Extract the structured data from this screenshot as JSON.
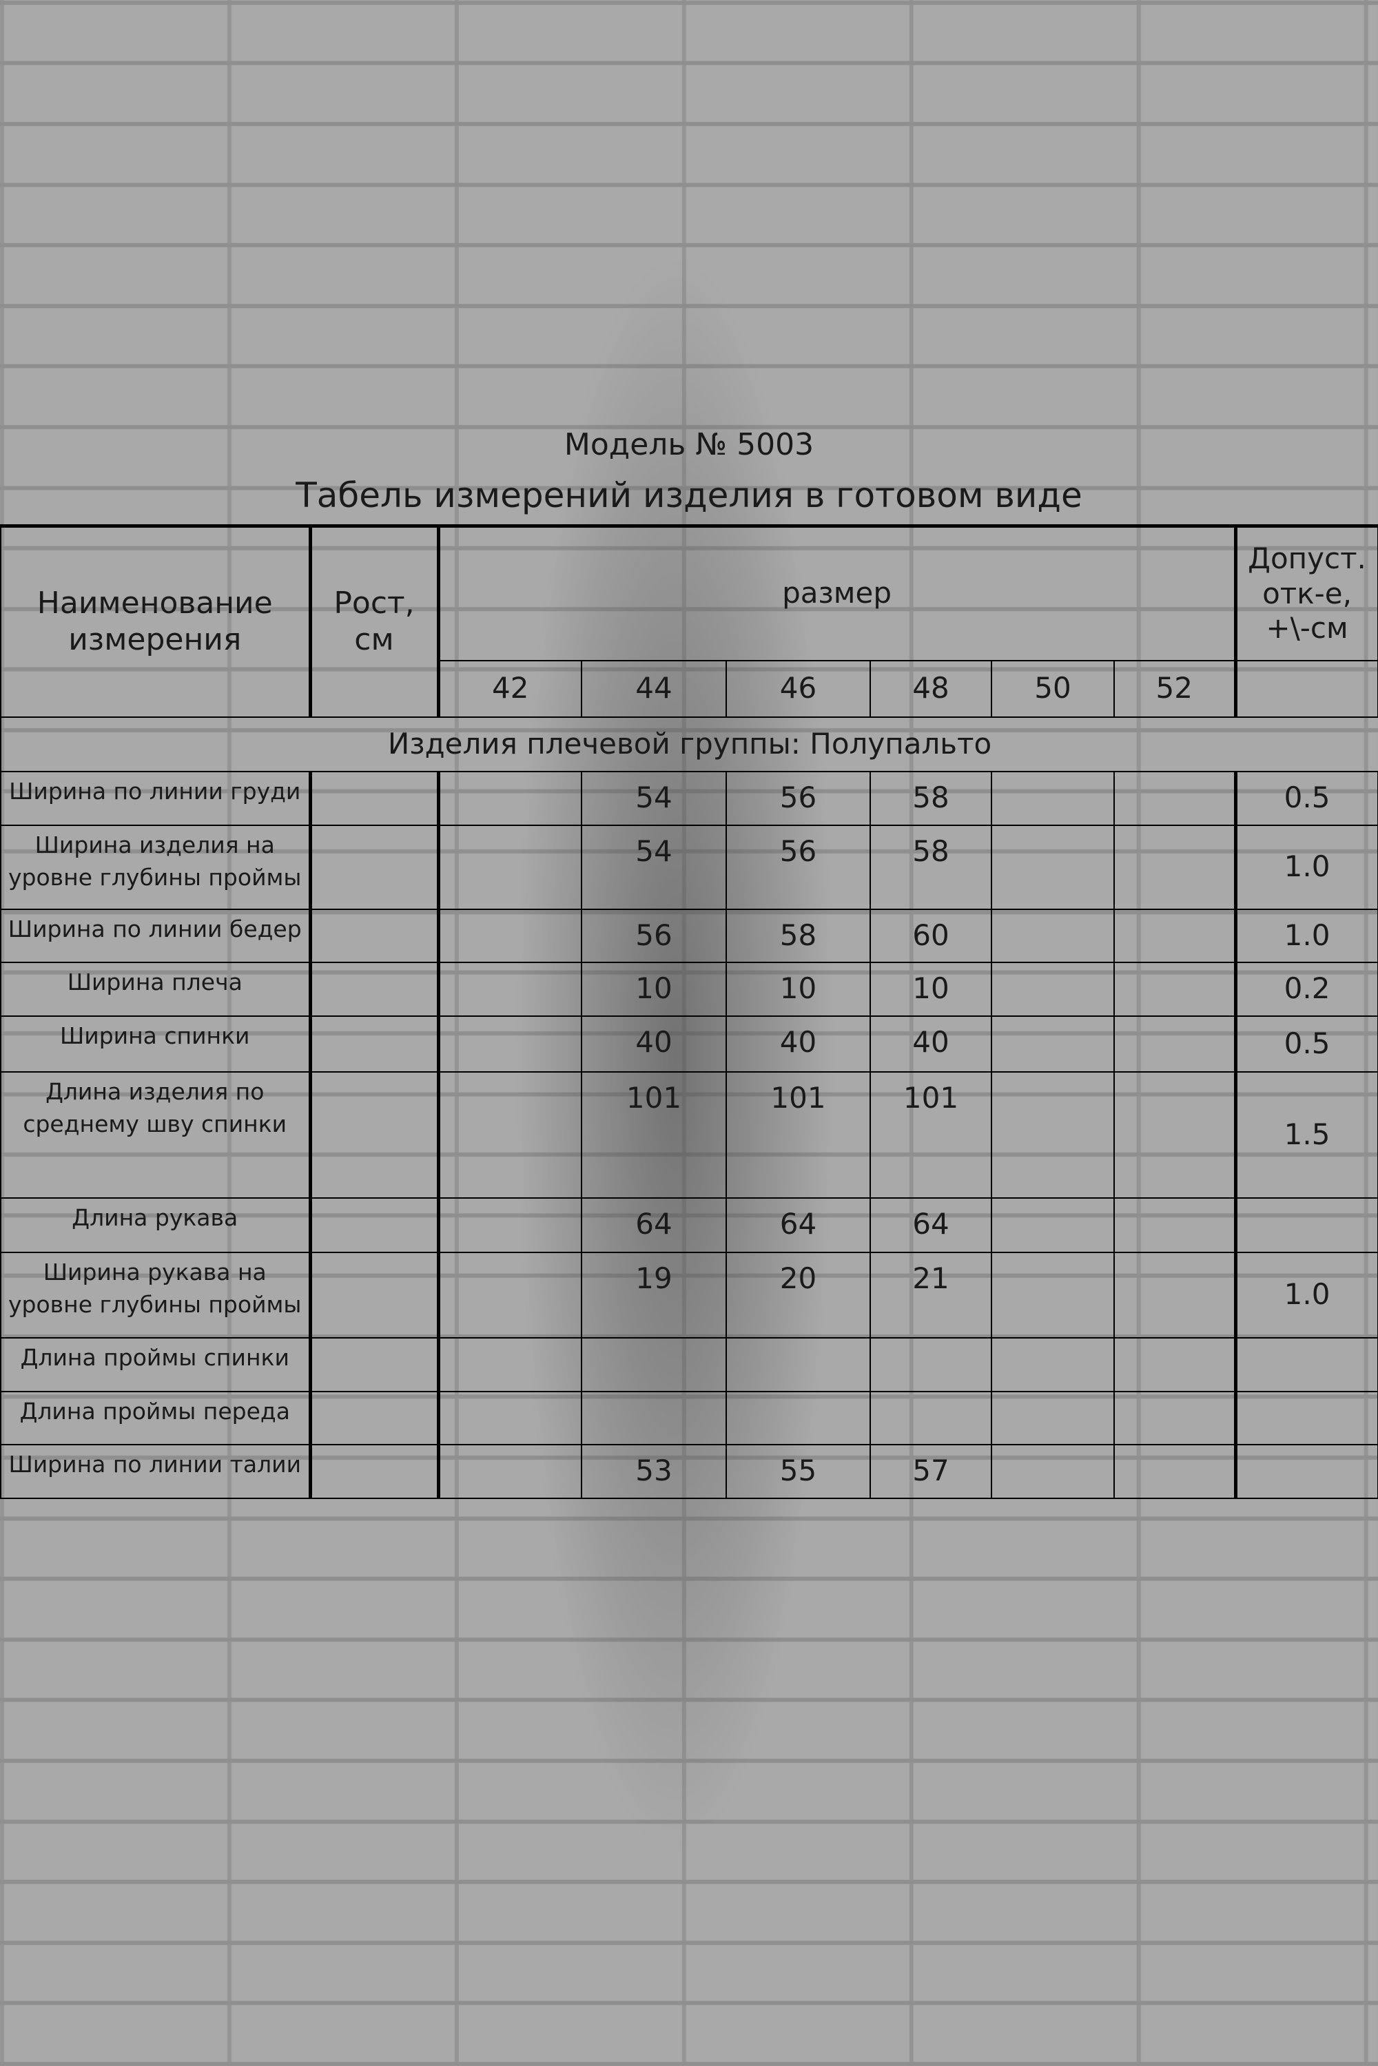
{
  "header": {
    "model": "Модель № 5003",
    "title": "Табель измерений изделия в готовом виде"
  },
  "table": {
    "columns": {
      "name": "Наименование измерения",
      "height": "Рост, см",
      "size": "размер",
      "tolerance": "Допуст. отк-е, +\\-см"
    },
    "sizes": [
      42,
      44,
      46,
      48,
      50,
      52
    ],
    "section": "Изделия плечевой группы: Полупальто",
    "rows": [
      {
        "name": "Ширина по линии груди",
        "values": [
          null,
          54,
          56,
          58,
          null,
          null
        ],
        "tolerance": "0.5"
      },
      {
        "name": "Ширина изделия на уровне глубины проймы",
        "values": [
          null,
          54,
          56,
          58,
          null,
          null
        ],
        "tolerance": "1.0"
      },
      {
        "name": "Ширина по линии бедер",
        "values": [
          null,
          56,
          58,
          60,
          null,
          null
        ],
        "tolerance": "1.0"
      },
      {
        "name": "Ширина плеча",
        "values": [
          null,
          10,
          10,
          10,
          null,
          null
        ],
        "tolerance": "0.2"
      },
      {
        "name": "Ширина спинки",
        "values": [
          null,
          40,
          40,
          40,
          null,
          null
        ],
        "tolerance": "0.5"
      },
      {
        "name": "Длина изделия по среднему шву спинки",
        "values": [
          null,
          101,
          101,
          101,
          null,
          null
        ],
        "tolerance": "1.5"
      },
      {
        "name": "Длина рукава",
        "values": [
          null,
          64,
          64,
          64,
          null,
          null
        ],
        "tolerance": null
      },
      {
        "name": "Ширина рукава на уровне глубины проймы",
        "values": [
          null,
          19,
          20,
          21,
          null,
          null
        ],
        "tolerance": "1.0"
      },
      {
        "name": "Длина проймы спинки",
        "values": [
          null,
          null,
          null,
          null,
          null,
          null
        ],
        "tolerance": null
      },
      {
        "name": "Длина проймы переда",
        "values": [
          null,
          null,
          null,
          null,
          null,
          null
        ],
        "tolerance": null
      },
      {
        "name": "Ширина по линии талии",
        "values": [
          null,
          53,
          55,
          57,
          null,
          null
        ],
        "tolerance": null
      }
    ]
  }
}
